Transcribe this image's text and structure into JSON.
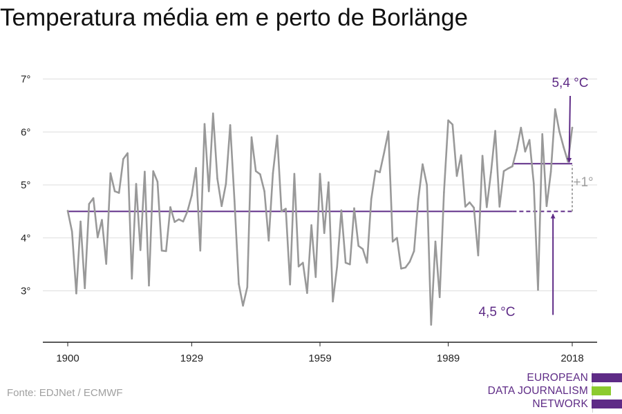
{
  "title": "Temperatura média em e perto de Borlänge",
  "source": "Fonte: EDJNet / ECMWF",
  "logo": {
    "lines": [
      "EUROPEAN",
      "DATA JOURNALISM",
      "NETWORK"
    ],
    "colors": {
      "purple": "#5e2b86",
      "green": "#8ccb2e"
    }
  },
  "colors": {
    "line": "#999999",
    "accent": "#5e2b86",
    "grid": "#dddddd",
    "delta": "#a0a0a0"
  },
  "chart_data": {
    "type": "line",
    "title": "Temperatura média em e perto de Borlänge",
    "xlabel": "",
    "ylabel": "",
    "xlim": [
      1900,
      2018
    ],
    "ylim": [
      2,
      7
    ],
    "x_ticks": [
      1900,
      1929,
      1959,
      1989,
      2018
    ],
    "y_ticks": [
      3,
      4,
      5,
      6,
      7
    ],
    "y_tick_labels": [
      "3°",
      "4°",
      "5°",
      "6°",
      "7°"
    ],
    "grid": true,
    "series": [
      {
        "x": [
          1900,
          1901,
          1902,
          1903,
          1904,
          1905,
          1906,
          1907,
          1908,
          1909,
          1910,
          1911,
          1912,
          1913,
          1914,
          1915,
          1916,
          1917,
          1918,
          1919,
          1920,
          1921,
          1922,
          1923,
          1924,
          1925,
          1926,
          1927,
          1928,
          1929,
          1930,
          1931,
          1932,
          1933,
          1934,
          1935,
          1936,
          1937,
          1938,
          1939,
          1940,
          1941,
          1942,
          1943,
          1944,
          1945,
          1946,
          1947,
          1948,
          1949,
          1950,
          1951,
          1952,
          1953,
          1954,
          1955,
          1956,
          1957,
          1958,
          1959,
          1960,
          1961,
          1962,
          1963,
          1964,
          1965,
          1966,
          1967,
          1968,
          1969,
          1970,
          1971,
          1972,
          1973,
          1974,
          1975,
          1976,
          1977,
          1978,
          1979,
          1980,
          1981,
          1982,
          1983,
          1984,
          1985,
          1986,
          1987,
          1988,
          1989,
          1990,
          1991,
          1992,
          1993,
          1994,
          1995,
          1996,
          1997,
          1998,
          1999,
          2000,
          2001,
          2002,
          2003,
          2004,
          2005,
          2006,
          2007,
          2008,
          2009,
          2010,
          2011,
          2012,
          2013,
          2014,
          2015,
          2016,
          2017,
          2018
        ],
        "values": [
          4.51,
          4.12,
          2.95,
          4.31,
          3.05,
          4.64,
          4.75,
          4.01,
          4.34,
          3.51,
          5.22,
          4.88,
          4.85,
          5.49,
          5.6,
          3.23,
          5.02,
          3.77,
          5.25,
          3.1,
          5.26,
          5.06,
          3.76,
          3.75,
          4.58,
          4.3,
          4.35,
          4.31,
          4.5,
          4.8,
          5.32,
          3.76,
          6.15,
          4.88,
          6.35,
          5.12,
          4.6,
          5.02,
          6.13,
          4.7,
          3.13,
          2.72,
          3.07,
          5.9,
          5.26,
          5.2,
          4.88,
          3.95,
          5.22,
          5.93,
          4.5,
          4.55,
          3.12,
          5.21,
          3.46,
          3.53,
          2.96,
          4.24,
          3.26,
          5.21,
          4.09,
          5.05,
          2.8,
          3.45,
          4.52,
          3.53,
          3.5,
          4.56,
          3.85,
          3.79,
          3.53,
          4.73,
          5.27,
          5.24,
          5.61,
          6.01,
          3.93,
          4.0,
          3.42,
          3.44,
          3.55,
          3.75,
          4.73,
          5.39,
          5.0,
          2.36,
          3.93,
          2.88,
          4.86,
          6.22,
          6.14,
          5.17,
          5.56,
          4.59,
          4.67,
          4.57,
          3.67,
          5.55,
          4.58,
          5.24,
          6.02,
          4.59,
          5.26,
          5.31,
          5.35,
          5.66,
          6.08,
          5.63,
          5.85,
          5.03,
          3.02,
          5.96,
          4.6,
          5.25,
          6.43,
          6.01,
          5.71,
          5.44,
          6.08
        ]
      }
    ],
    "annotations": {
      "baseline": {
        "value": 4.5,
        "label": "4,5 °C",
        "x_from": 1900,
        "x_to": 2018
      },
      "recent": {
        "value": 5.4,
        "label": "5,4 °C",
        "x_from": 2004,
        "x_to": 2018
      },
      "delta_label": "+1°"
    }
  }
}
